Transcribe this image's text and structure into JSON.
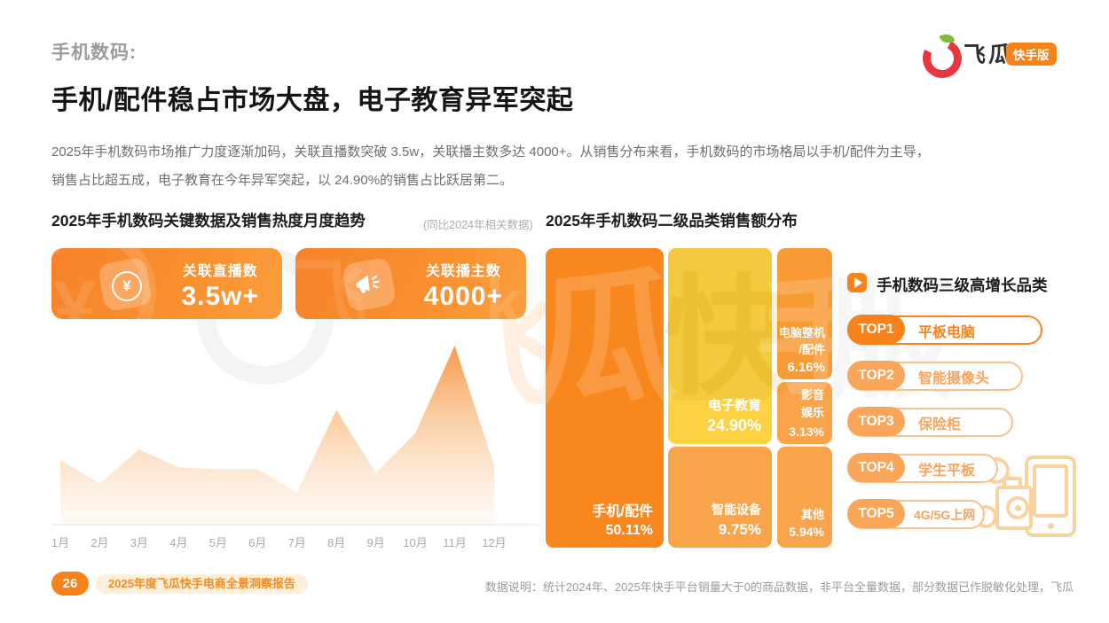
{
  "header": {
    "kicker": "手机数码:",
    "title": "手机/配件稳占市场大盘，电子教育异军突起",
    "paragraph_line1": "2025年手机数码市场推广力度逐渐加码，关联直播数突破 3.5w，关联播主数多达 4000+。从销售分布来看，手机数码的市场格局以手机/配件为主导，",
    "paragraph_line2": "销售占比超五成，电子教育在今年异军突起，以 24.90%的销售占比跃居第二。"
  },
  "logo": {
    "brand": "飞瓜",
    "badge": "快手版"
  },
  "sections": {
    "trend_title": "2025年手机数码关键数据及销售热度月度趋势",
    "trend_subtitle": "(同比2024年相关数据)",
    "treemap_title": "2025年手机数码二级品类销售额分布",
    "top_title": "手机数码三级高增长品类"
  },
  "stat_cards": [
    {
      "label": "关联直播数",
      "value": "3.5w+",
      "icon": "yuan-coin-icon"
    },
    {
      "label": "关联播主数",
      "value": "4000+",
      "icon": "megaphone-icon"
    }
  ],
  "chart_data": [
    {
      "type": "area",
      "title": "2025年手机数码关键数据及销售热度月度趋势",
      "x": [
        "1月",
        "2月",
        "3月",
        "4月",
        "5月",
        "6月",
        "7月",
        "8月",
        "9月",
        "10月",
        "11月",
        "12月"
      ],
      "values": [
        36,
        23,
        42,
        32,
        31,
        31,
        18,
        64,
        29,
        51,
        100,
        33
      ],
      "ylim": [
        0,
        100
      ],
      "y_axis_visible": false,
      "grid": false,
      "fill": "vertical orange gradient #f79b4a to white",
      "note": "values are relative sales-heat heights estimated from the figure, peak 11月 = 100"
    },
    {
      "type": "treemap",
      "title": "2025年手机数码二级品类销售额分布",
      "items": [
        {
          "name": "手机/配件",
          "value": "50.11%",
          "color": "#f8871e"
        },
        {
          "name": "电子教育",
          "value": "24.90%",
          "color": "#fcd243"
        },
        {
          "name": "智能设备",
          "value": "9.75%",
          "color": "#f9a44b"
        },
        {
          "name": "电脑整机/配件",
          "name_lines": [
            "电脑整机",
            "/配件"
          ],
          "value": "6.16%",
          "color": "#f99b35"
        },
        {
          "name": "影音娱乐",
          "name_lines": [
            "影音",
            "娱乐"
          ],
          "value": "3.13%",
          "color": "#f9a44b"
        },
        {
          "name": "其他",
          "value": "5.94%",
          "color": "#f9a44b"
        }
      ]
    }
  ],
  "top_list": [
    {
      "rank": "TOP1",
      "label": "平板电脑"
    },
    {
      "rank": "TOP2",
      "label": "智能摄像头"
    },
    {
      "rank": "TOP3",
      "label": "保险柜"
    },
    {
      "rank": "TOP4",
      "label": "学生平板"
    },
    {
      "rank": "TOP5",
      "label": "4G/5G上网"
    }
  ],
  "footer": {
    "page_number": "26",
    "report_name": "2025年度飞瓜快手电商全景洞察报告",
    "data_note": "数据说明：统计2024年、2025年快手平台销量大于0的商品数据，非平台全量数据，部分数据已作脱敏化处理，飞瓜"
  },
  "watermark": {
    "chars": [
      "飞",
      "瓜",
      "快",
      "手",
      "版"
    ]
  },
  "colors": {
    "primary_orange": "#f8831c",
    "badge_orange": "#f8821a",
    "card_orange": "#f8862b",
    "treemap_yellow": "#fcd243",
    "treemap_light_orange": "#f9a44b",
    "treemap_mid_orange": "#f99b35",
    "brand_red": "#e8363f",
    "brand_green": "#7fba39"
  }
}
